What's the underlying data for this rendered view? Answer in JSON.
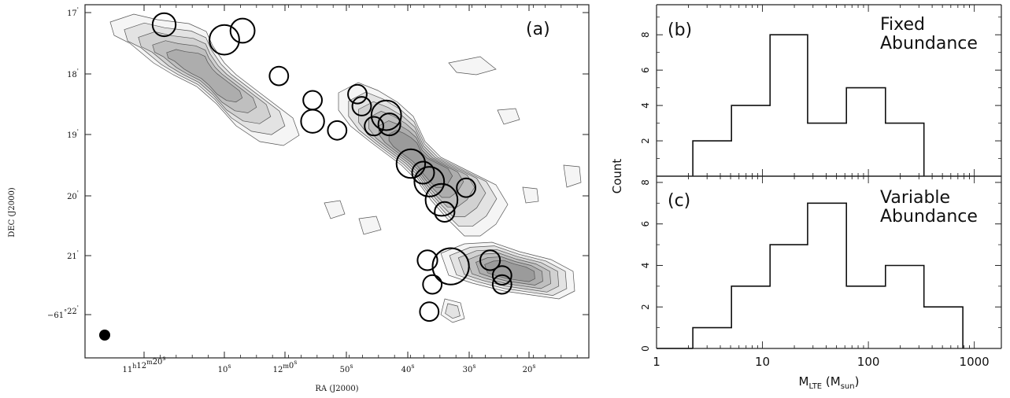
{
  "chart_data": [
    {
      "type": "scatter",
      "panel_label": "(a)",
      "xlabel": "RA (J2000)",
      "ylabel": "DEC (J2000)",
      "xticks": [
        {
          "main": "11",
          "sup1": "h",
          "mid": "12",
          "sup2": "m",
          "end": "20",
          "sup3": "s",
          "pos": 0
        },
        {
          "main": "10",
          "sup1": "s",
          "pos": 1
        },
        {
          "main": "12",
          "sup1": "m",
          "mid": "0",
          "sup2": "s",
          "pos": 2
        },
        {
          "main": "50",
          "sup1": "s",
          "pos": 3
        },
        {
          "main": "40",
          "sup1": "s",
          "pos": 4
        },
        {
          "main": "30",
          "sup1": "s",
          "pos": 5
        },
        {
          "main": "20",
          "sup1": "s",
          "pos": 6
        }
      ],
      "yticks": [
        {
          "main": "17",
          "sup": "'",
          "pos": 0
        },
        {
          "main": "18",
          "sup": "'",
          "pos": 1
        },
        {
          "main": "19",
          "sup": "'",
          "pos": 2
        },
        {
          "main": "20",
          "sup": "'",
          "pos": 3
        },
        {
          "main": "21",
          "sup": "'",
          "pos": 4
        },
        {
          "main": "−61",
          "sup1": "°",
          "mid": "22",
          "sup": "'",
          "pos": 5
        }
      ],
      "xlim_ra_sec": [
        74,
        -20
      ],
      "ylim_dec_min": [
        16.85,
        22.55
      ],
      "cores": [
        {
          "ra": 77.5,
          "dec": 17.2,
          "r": 1.05
        },
        {
          "ra": 70,
          "dec": 17.45,
          "r": 1.35
        },
        {
          "ra": 67,
          "dec": 17.3,
          "r": 1.1
        },
        {
          "ra": 61,
          "dec": 18.05,
          "r": 0.85
        },
        {
          "ra": 55.5,
          "dec": 18.45,
          "r": 0.85
        },
        {
          "ra": 55.5,
          "dec": 18.8,
          "r": 1.05
        },
        {
          "ra": 51.5,
          "dec": 18.95,
          "r": 0.85
        },
        {
          "ra": 48.2,
          "dec": 18.35,
          "r": 0.85
        },
        {
          "ra": 47.5,
          "dec": 18.55,
          "r": 0.85
        },
        {
          "ra": 45.5,
          "dec": 18.88,
          "r": 0.85
        },
        {
          "ra": 43.5,
          "dec": 18.7,
          "r": 1.35
        },
        {
          "ra": 43,
          "dec": 18.85,
          "r": 1.0
        },
        {
          "ra": 39.5,
          "dec": 19.5,
          "r": 1.3
        },
        {
          "ra": 37.5,
          "dec": 19.65,
          "r": 1.0
        },
        {
          "ra": 36.5,
          "dec": 19.8,
          "r": 1.35
        },
        {
          "ra": 34.5,
          "dec": 20.1,
          "r": 1.45
        },
        {
          "ra": 34,
          "dec": 20.3,
          "r": 0.9
        },
        {
          "ra": 30.5,
          "dec": 19.9,
          "r": 0.85
        },
        {
          "ra": 36.8,
          "dec": 21.1,
          "r": 0.9
        },
        {
          "ra": 33,
          "dec": 21.2,
          "r": 1.65
        },
        {
          "ra": 36,
          "dec": 21.5,
          "r": 0.85
        },
        {
          "ra": 26.5,
          "dec": 21.1,
          "r": 0.9
        },
        {
          "ra": 24.5,
          "dec": 21.35,
          "r": 0.85
        },
        {
          "ra": 24.5,
          "dec": 21.5,
          "r": 0.85
        },
        {
          "ra": 36.5,
          "dec": 21.95,
          "r": 0.85
        }
      ]
    },
    {
      "type": "bar",
      "panel_label": "(b)",
      "title_lines": [
        "Fixed",
        "Abundance"
      ],
      "bin_edges": [
        2.2,
        5.1,
        11.8,
        26.7,
        62,
        145,
        335
      ],
      "values": [
        2,
        4,
        8,
        3,
        5,
        3
      ],
      "ylim": [
        0,
        9.7
      ],
      "yticks": [
        "2",
        "4",
        "6",
        "8"
      ]
    },
    {
      "type": "bar",
      "panel_label": "(c)",
      "title_lines": [
        "Variable",
        "Abundance"
      ],
      "bin_edges": [
        2.2,
        5.1,
        11.8,
        26.7,
        62,
        145,
        335,
        780
      ],
      "values": [
        1,
        3,
        5,
        7,
        3,
        4,
        2
      ],
      "ylim": [
        0,
        8.3
      ],
      "yticks": [
        "0",
        "2",
        "4",
        "6",
        "8"
      ],
      "ylabel": "Count",
      "xlabel_main": "M",
      "xlabel_sub": "LTE",
      "xlabel_paren_open": " (M",
      "xlabel_sub2": "sun",
      "xlabel_paren_close": ")",
      "xlim_log": [
        1,
        1800
      ],
      "xticks": [
        "1",
        "10",
        "100",
        "1000"
      ]
    }
  ]
}
